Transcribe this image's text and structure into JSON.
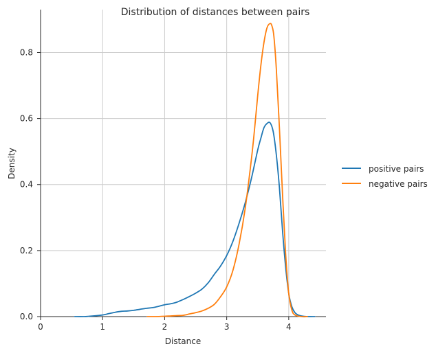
{
  "chart_data": {
    "type": "line",
    "title": "Distribution of distances between pairs",
    "xlabel": "Distance",
    "ylabel": "Density",
    "xlim": [
      0,
      4.6
    ],
    "ylim": [
      0,
      0.93
    ],
    "xticks": [
      "0",
      "1",
      "2",
      "3",
      "4"
    ],
    "yticks": [
      "0.0",
      "0.2",
      "0.4",
      "0.6",
      "0.8"
    ],
    "grid": true,
    "legend_position": "right",
    "series": [
      {
        "name": "positive pairs",
        "color": "#1f77b4",
        "x": [
          0.55,
          0.7,
          0.85,
          1.0,
          1.1,
          1.2,
          1.3,
          1.4,
          1.5,
          1.6,
          1.7,
          1.8,
          1.9,
          2.0,
          2.1,
          2.2,
          2.3,
          2.4,
          2.5,
          2.6,
          2.7,
          2.8,
          2.9,
          3.0,
          3.1,
          3.2,
          3.3,
          3.4,
          3.5,
          3.55,
          3.6,
          3.65,
          3.7,
          3.75,
          3.8,
          3.85,
          3.9,
          3.95,
          4.0,
          4.05,
          4.1,
          4.15,
          4.2,
          4.3,
          4.42
        ],
        "y": [
          0.0,
          0.0,
          0.002,
          0.005,
          0.009,
          0.013,
          0.016,
          0.017,
          0.019,
          0.022,
          0.025,
          0.027,
          0.031,
          0.036,
          0.039,
          0.044,
          0.052,
          0.061,
          0.071,
          0.083,
          0.102,
          0.128,
          0.153,
          0.185,
          0.228,
          0.283,
          0.346,
          0.42,
          0.505,
          0.54,
          0.572,
          0.585,
          0.587,
          0.56,
          0.49,
          0.39,
          0.26,
          0.15,
          0.07,
          0.03,
          0.012,
          0.005,
          0.002,
          0.0,
          0.0
        ]
      },
      {
        "name": "negative pairs",
        "color": "#ff7f0e",
        "x": [
          1.72,
          1.85,
          2.0,
          2.1,
          2.2,
          2.3,
          2.4,
          2.5,
          2.6,
          2.7,
          2.8,
          2.9,
          3.0,
          3.1,
          3.2,
          3.3,
          3.4,
          3.45,
          3.5,
          3.55,
          3.6,
          3.65,
          3.7,
          3.73,
          3.76,
          3.8,
          3.85,
          3.9,
          3.95,
          4.0,
          4.05,
          4.1,
          4.2,
          4.3
        ],
        "y": [
          0.0,
          0.0,
          0.001,
          0.002,
          0.003,
          0.004,
          0.008,
          0.012,
          0.017,
          0.025,
          0.037,
          0.06,
          0.09,
          0.14,
          0.22,
          0.33,
          0.48,
          0.57,
          0.67,
          0.76,
          0.83,
          0.875,
          0.888,
          0.88,
          0.85,
          0.75,
          0.57,
          0.37,
          0.19,
          0.07,
          0.02,
          0.005,
          0.0,
          0.0
        ]
      }
    ]
  }
}
